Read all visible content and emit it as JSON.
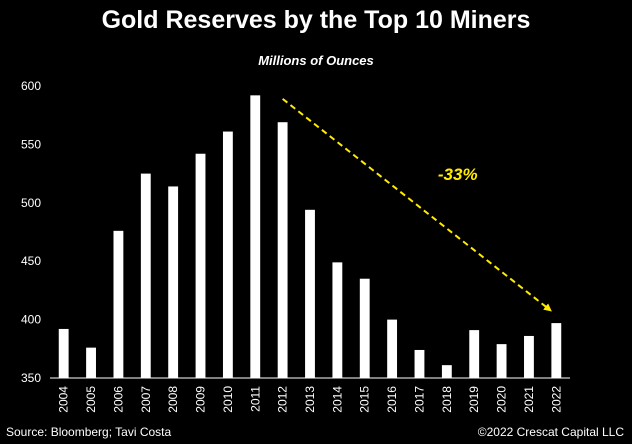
{
  "chart_data": {
    "type": "bar",
    "title": "Gold Reserves by the Top 10 Miners",
    "subtitle": "Millions of Ounces",
    "categories": [
      "2004",
      "2005",
      "2006",
      "2007",
      "2008",
      "2009",
      "2010",
      "2011",
      "2012",
      "2013",
      "2014",
      "2015",
      "2016",
      "2017",
      "2018",
      "2019",
      "2020",
      "2021",
      "2022"
    ],
    "values": [
      392,
      376,
      476,
      525,
      514,
      542,
      561,
      592,
      569,
      494,
      449,
      435,
      400,
      374,
      361,
      391,
      379,
      386,
      397
    ],
    "ylim": [
      350,
      600
    ],
    "yticks": [
      350,
      400,
      450,
      500,
      550,
      600
    ],
    "grid": false,
    "bar_color": "#ffffff",
    "annotation": {
      "label": "-33%",
      "color": "#ffeb00",
      "from_category": "2012",
      "from_value": 589,
      "to_category": "2022",
      "to_value": 408
    }
  },
  "footer": {
    "source": "Source: Bloomberg; Tavi Costa",
    "copyright": "©2022 Crescat Capital LLC"
  }
}
